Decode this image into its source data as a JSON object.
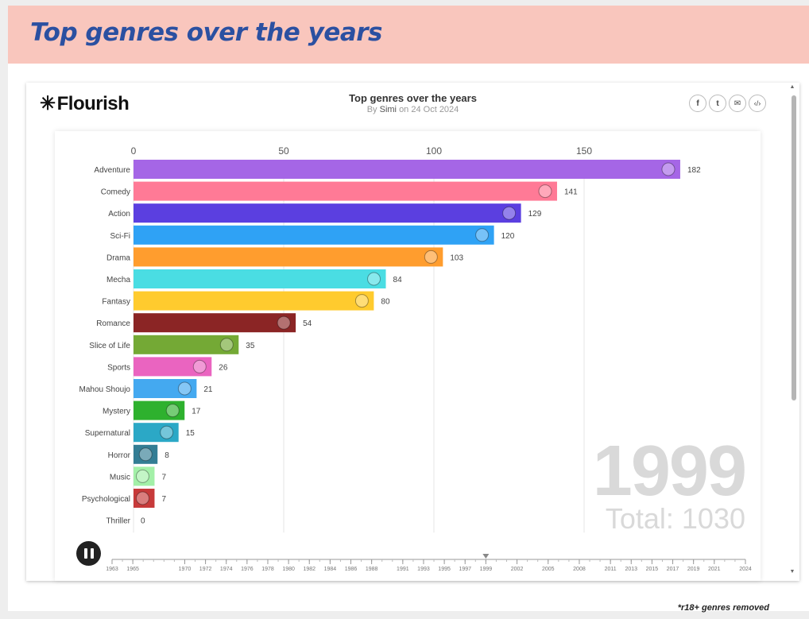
{
  "page": {
    "title": "Top genres over the years",
    "footnote": "*r18+ genres removed"
  },
  "embed": {
    "logo_text": "Flourish",
    "title": "Top genres over the years",
    "byline_prefix": "By",
    "author": "Simi",
    "byline_suffix": "on 24 Oct 2024",
    "share": [
      {
        "name": "facebook-icon",
        "glyph": "f"
      },
      {
        "name": "twitter-icon",
        "glyph": "t"
      },
      {
        "name": "email-icon",
        "glyph": "✉"
      },
      {
        "name": "embed-code-icon",
        "glyph": "‹/›"
      }
    ]
  },
  "chart_data": {
    "type": "bar",
    "orientation": "horizontal",
    "current_year": "1999",
    "total_label": "Total: 1030",
    "xlim": [
      0,
      182
    ],
    "xticks": [
      0,
      50,
      100,
      150
    ],
    "grid": true,
    "categories": [
      "Adventure",
      "Comedy",
      "Action",
      "Sci-Fi",
      "Drama",
      "Mecha",
      "Fantasy",
      "Romance",
      "Slice of Life",
      "Sports",
      "Mahou Shoujo",
      "Mystery",
      "Supernatural",
      "Horror",
      "Music",
      "Psychological",
      "Thriller"
    ],
    "values": [
      182,
      141,
      129,
      120,
      103,
      84,
      80,
      54,
      35,
      26,
      21,
      17,
      15,
      8,
      7,
      7,
      0
    ],
    "colors": [
      "#a566e6",
      "#ff7a96",
      "#5b3fe0",
      "#2fa2f5",
      "#ff9d2e",
      "#4adde3",
      "#ffcb2e",
      "#8b2525",
      "#74a935",
      "#ea64c0",
      "#44a9f0",
      "#2eb12e",
      "#2ba8c6",
      "#337d94",
      "#a3f0a8",
      "#c73a3a",
      "#cccccc"
    ],
    "icons": [
      "treasure-map-icon",
      "laughing-face-icon",
      "explosion-icon",
      "alien-ufo-icon",
      "theater-masks-icon",
      "robot-gear-icon",
      "magic-wand-icon",
      "heart-icon",
      "cheese-slice-icon",
      "basketball-icon",
      "witch-icon",
      "magnifier-icon",
      "spellbook-icon",
      "monster-mouth-icon",
      "music-notes-icon",
      "brain-faces-icon",
      ""
    ],
    "timeline": {
      "years": [
        "1963",
        "1965",
        "1970",
        "1972",
        "1974",
        "1976",
        "1978",
        "1980",
        "1982",
        "1984",
        "1986",
        "1988",
        "1991",
        "1993",
        "1995",
        "1997",
        "1999",
        "2002",
        "2005",
        "2008",
        "2011",
        "2013",
        "2015",
        "2017",
        "2019",
        "2021",
        "2024"
      ],
      "current": "1999"
    }
  }
}
